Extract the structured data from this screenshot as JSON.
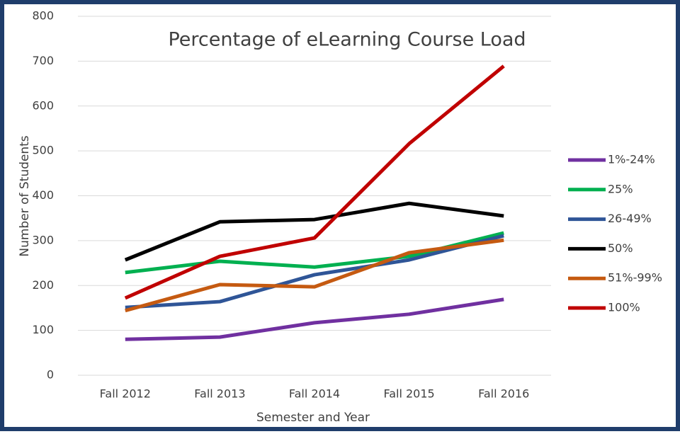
{
  "chart_data": {
    "type": "line",
    "title": "Percentage of eLearning Course Load",
    "xlabel": "Semester and Year",
    "ylabel": "Number of Students",
    "categories": [
      "Fall 2012",
      "Fall 2013",
      "Fall 2014",
      "Fall 2015",
      "Fall 2016"
    ],
    "series": [
      {
        "name": "1%-24%",
        "color": "#7030a0",
        "values": [
          80,
          85,
          117,
          136,
          169
        ]
      },
      {
        "name": "25%",
        "color": "#00b050",
        "values": [
          229,
          254,
          241,
          265,
          317
        ]
      },
      {
        "name": "26-49%",
        "color": "#2f5597",
        "values": [
          151,
          164,
          224,
          257,
          311
        ]
      },
      {
        "name": "50%",
        "color": "#000000",
        "values": [
          257,
          342,
          347,
          383,
          355
        ]
      },
      {
        "name": "51%-99%",
        "color": "#c55a11",
        "values": [
          144,
          202,
          197,
          273,
          301
        ]
      },
      {
        "name": "100%",
        "color": "#c00000",
        "values": [
          172,
          265,
          306,
          516,
          689
        ]
      }
    ],
    "ylim": [
      0,
      800
    ],
    "yticks": [
      0,
      100,
      200,
      300,
      400,
      500,
      600,
      700,
      800
    ],
    "grid": true,
    "legend": "right"
  }
}
